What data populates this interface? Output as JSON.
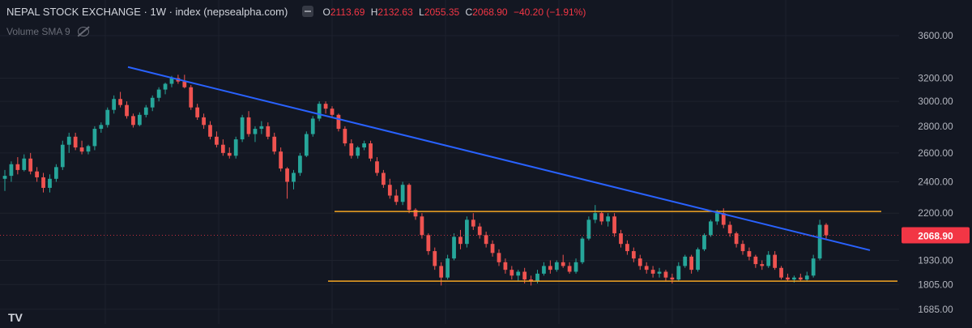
{
  "header": {
    "title": "NEPAL STOCK EXCHANGE · 1W · index (nepsealpha.com)",
    "ohlc": [
      {
        "label": "O",
        "value": "2113.69"
      },
      {
        "label": "H",
        "value": "2132.63"
      },
      {
        "label": "L",
        "value": "2055.35"
      },
      {
        "label": "C",
        "value": "2068.90"
      }
    ],
    "change": "−40.20 (−1.91%)",
    "volume_indicator": "Volume SMA 9"
  },
  "colors": {
    "background": "#131722",
    "up": "#26a69a",
    "down": "#ef5350",
    "trendline": "#2962ff",
    "support_resistance": "#f5a623",
    "price_tag": "#f23645"
  },
  "chart_data": {
    "type": "candlestick",
    "y_axis": {
      "scale": "log",
      "range": [
        1625,
        3800
      ],
      "ticks": [
        "3600.00",
        "3200.00",
        "3000.00",
        "2800.00",
        "2600.00",
        "2400.00",
        "2200.00",
        "1930.00",
        "1805.00",
        "1685.00"
      ]
    },
    "last_price": {
      "value": 2068.9,
      "label": "2068.90"
    },
    "horizontal_levels": [
      {
        "name": "resistance",
        "value": 2210
      },
      {
        "name": "support",
        "value": 1822
      }
    ],
    "trendline": {
      "from_price": 3300,
      "to_price": 1985
    },
    "candles": [
      [
        2420,
        2480,
        2340,
        2440
      ],
      [
        2440,
        2540,
        2400,
        2520
      ],
      [
        2520,
        2570,
        2450,
        2480
      ],
      [
        2480,
        2590,
        2470,
        2560
      ],
      [
        2560,
        2600,
        2450,
        2470
      ],
      [
        2470,
        2500,
        2400,
        2430
      ],
      [
        2430,
        2460,
        2330,
        2360
      ],
      [
        2360,
        2450,
        2330,
        2420
      ],
      [
        2420,
        2520,
        2400,
        2500
      ],
      [
        2500,
        2690,
        2480,
        2660
      ],
      [
        2660,
        2750,
        2600,
        2720
      ],
      [
        2720,
        2750,
        2620,
        2640
      ],
      [
        2640,
        2690,
        2590,
        2610
      ],
      [
        2610,
        2660,
        2590,
        2650
      ],
      [
        2650,
        2800,
        2620,
        2780
      ],
      [
        2780,
        2830,
        2750,
        2810
      ],
      [
        2810,
        2950,
        2790,
        2930
      ],
      [
        2930,
        3050,
        2900,
        3020
      ],
      [
        3020,
        3080,
        2950,
        2970
      ],
      [
        2970,
        3000,
        2860,
        2880
      ],
      [
        2880,
        2900,
        2790,
        2810
      ],
      [
        2810,
        2910,
        2800,
        2890
      ],
      [
        2890,
        2970,
        2870,
        2950
      ],
      [
        2950,
        3050,
        2920,
        3030
      ],
      [
        3030,
        3120,
        3000,
        3100
      ],
      [
        3100,
        3160,
        3060,
        3150
      ],
      [
        3150,
        3220,
        3120,
        3200
      ],
      [
        3200,
        3230,
        3150,
        3170
      ],
      [
        3170,
        3230,
        3110,
        3120
      ],
      [
        3120,
        3140,
        2930,
        2950
      ],
      [
        2950,
        2980,
        2850,
        2870
      ],
      [
        2870,
        2900,
        2780,
        2810
      ],
      [
        2810,
        2840,
        2700,
        2720
      ],
      [
        2720,
        2760,
        2640,
        2660
      ],
      [
        2660,
        2700,
        2580,
        2600
      ],
      [
        2600,
        2640,
        2560,
        2580
      ],
      [
        2580,
        2720,
        2560,
        2700
      ],
      [
        2700,
        2890,
        2680,
        2870
      ],
      [
        2870,
        2920,
        2720,
        2740
      ],
      [
        2740,
        2800,
        2680,
        2780
      ],
      [
        2780,
        2840,
        2740,
        2800
      ],
      [
        2800,
        2830,
        2700,
        2720
      ],
      [
        2720,
        2750,
        2590,
        2610
      ],
      [
        2610,
        2640,
        2470,
        2490
      ],
      [
        2490,
        2500,
        2290,
        2400
      ],
      [
        2400,
        2480,
        2350,
        2460
      ],
      [
        2460,
        2600,
        2440,
        2580
      ],
      [
        2580,
        2760,
        2570,
        2740
      ],
      [
        2740,
        2880,
        2720,
        2860
      ],
      [
        2860,
        3000,
        2840,
        2980
      ],
      [
        2980,
        3000,
        2900,
        2940
      ],
      [
        2940,
        2960,
        2870,
        2890
      ],
      [
        2890,
        2900,
        2760,
        2780
      ],
      [
        2780,
        2800,
        2650,
        2670
      ],
      [
        2670,
        2700,
        2560,
        2580
      ],
      [
        2580,
        2650,
        2560,
        2640
      ],
      [
        2640,
        2690,
        2620,
        2670
      ],
      [
        2670,
        2690,
        2540,
        2560
      ],
      [
        2540,
        2570,
        2440,
        2460
      ],
      [
        2460,
        2480,
        2360,
        2380
      ],
      [
        2380,
        2420,
        2290,
        2310
      ],
      [
        2310,
        2350,
        2250,
        2270
      ],
      [
        2270,
        2400,
        2250,
        2380
      ],
      [
        2380,
        2390,
        2200,
        2220
      ],
      [
        2220,
        2230,
        2160,
        2180
      ],
      [
        2180,
        2200,
        2050,
        2070
      ],
      [
        2070,
        2080,
        1960,
        1980
      ],
      [
        1980,
        2000,
        1880,
        1900
      ],
      [
        1900,
        1920,
        1800,
        1840
      ],
      [
        1840,
        1960,
        1830,
        1940
      ],
      [
        1940,
        2080,
        1930,
        2060
      ],
      [
        2060,
        2100,
        1990,
        2020
      ],
      [
        2020,
        2180,
        2000,
        2160
      ],
      [
        2160,
        2200,
        2100,
        2120
      ],
      [
        2120,
        2140,
        2050,
        2070
      ],
      [
        2070,
        2090,
        2000,
        2020
      ],
      [
        2020,
        2040,
        1950,
        1970
      ],
      [
        1970,
        1990,
        1900,
        1920
      ],
      [
        1920,
        1940,
        1860,
        1880
      ],
      [
        1880,
        1900,
        1830,
        1850
      ],
      [
        1850,
        1880,
        1820,
        1870
      ],
      [
        1870,
        1890,
        1810,
        1830
      ],
      [
        1830,
        1850,
        1800,
        1820
      ],
      [
        1820,
        1880,
        1810,
        1860
      ],
      [
        1860,
        1920,
        1850,
        1900
      ],
      [
        1900,
        1930,
        1860,
        1880
      ],
      [
        1880,
        1930,
        1870,
        1920
      ],
      [
        1920,
        1960,
        1890,
        1900
      ],
      [
        1900,
        1920,
        1860,
        1870
      ],
      [
        1870,
        1940,
        1860,
        1920
      ],
      [
        1920,
        2060,
        1910,
        2050
      ],
      [
        2050,
        2180,
        2040,
        2160
      ],
      [
        2160,
        2250,
        2140,
        2200
      ],
      [
        2200,
        2210,
        2130,
        2150
      ],
      [
        2150,
        2200,
        2120,
        2180
      ],
      [
        2180,
        2200,
        2060,
        2080
      ],
      [
        2080,
        2100,
        2000,
        2020
      ],
      [
        2020,
        2040,
        1960,
        1980
      ],
      [
        1980,
        2000,
        1920,
        1940
      ],
      [
        1940,
        1960,
        1880,
        1900
      ],
      [
        1900,
        1920,
        1860,
        1880
      ],
      [
        1880,
        1900,
        1840,
        1860
      ],
      [
        1860,
        1890,
        1840,
        1870
      ],
      [
        1870,
        1880,
        1820,
        1840
      ],
      [
        1840,
        1860,
        1810,
        1830
      ],
      [
        1830,
        1920,
        1820,
        1900
      ],
      [
        1900,
        1960,
        1890,
        1950
      ],
      [
        1950,
        1960,
        1860,
        1880
      ],
      [
        1880,
        2000,
        1870,
        1990
      ],
      [
        1990,
        2080,
        1980,
        2070
      ],
      [
        2070,
        2160,
        2060,
        2150
      ],
      [
        2150,
        2220,
        2130,
        2200
      ],
      [
        2200,
        2230,
        2110,
        2130
      ],
      [
        2130,
        2150,
        2060,
        2080
      ],
      [
        2080,
        2090,
        2000,
        2020
      ],
      [
        2020,
        2040,
        1960,
        1980
      ],
      [
        1980,
        2000,
        1930,
        1950
      ],
      [
        1950,
        1960,
        1890,
        1910
      ],
      [
        1910,
        1930,
        1880,
        1900
      ],
      [
        1900,
        1980,
        1890,
        1960
      ],
      [
        1960,
        1980,
        1880,
        1890
      ],
      [
        1890,
        1900,
        1830,
        1840
      ],
      [
        1840,
        1860,
        1820,
        1830
      ],
      [
        1830,
        1850,
        1815,
        1840
      ],
      [
        1840,
        1860,
        1820,
        1830
      ],
      [
        1830,
        1870,
        1820,
        1850
      ],
      [
        1850,
        1960,
        1840,
        1940
      ],
      [
        1940,
        2160,
        1930,
        2130
      ],
      [
        2130,
        2140,
        2050,
        2068.9
      ]
    ]
  }
}
